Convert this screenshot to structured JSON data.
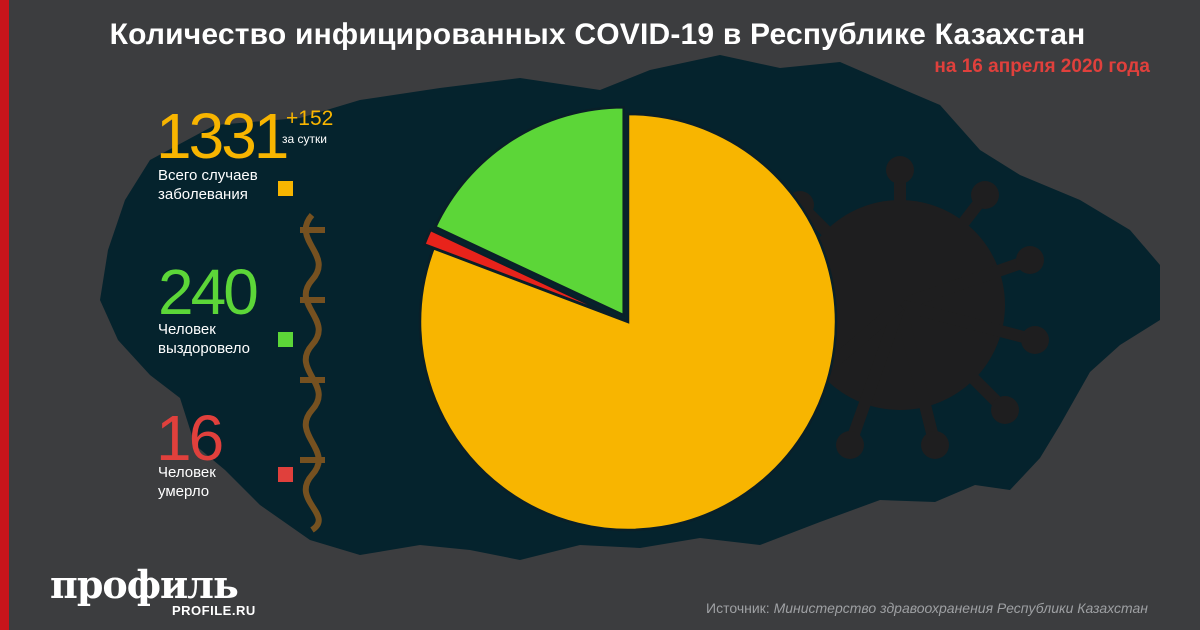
{
  "title": "Количество инфицированных COVID-19 в Республике Казахстан",
  "subtitle": "на 16 апреля 2020 года",
  "stats": {
    "total": {
      "value": "1331",
      "delta": "+152",
      "delta_label": "за сутки",
      "label_line1": "Всего случаев",
      "label_line2": "заболевания",
      "color": "#f8b500"
    },
    "recovered": {
      "value": "240",
      "label_line1": "Человек",
      "label_line2": "выздоровело",
      "color": "#5cd638"
    },
    "deaths": {
      "value": "16",
      "label_line1": "Человек",
      "label_line2": "умерло",
      "color": "#e0403c"
    }
  },
  "chart_data": {
    "type": "pie",
    "series": [
      {
        "value": 1075,
        "color": "#f8b500"
      },
      {
        "value": 16,
        "color": "#e8231b"
      },
      {
        "value": 240,
        "color": "#5cd638"
      }
    ]
  },
  "logo": {
    "name": "профиль",
    "site": "PROFILE.RU"
  },
  "source": {
    "prefix": "Источник:",
    "text": "Министерство здравоохранения Республики Казахстан"
  }
}
